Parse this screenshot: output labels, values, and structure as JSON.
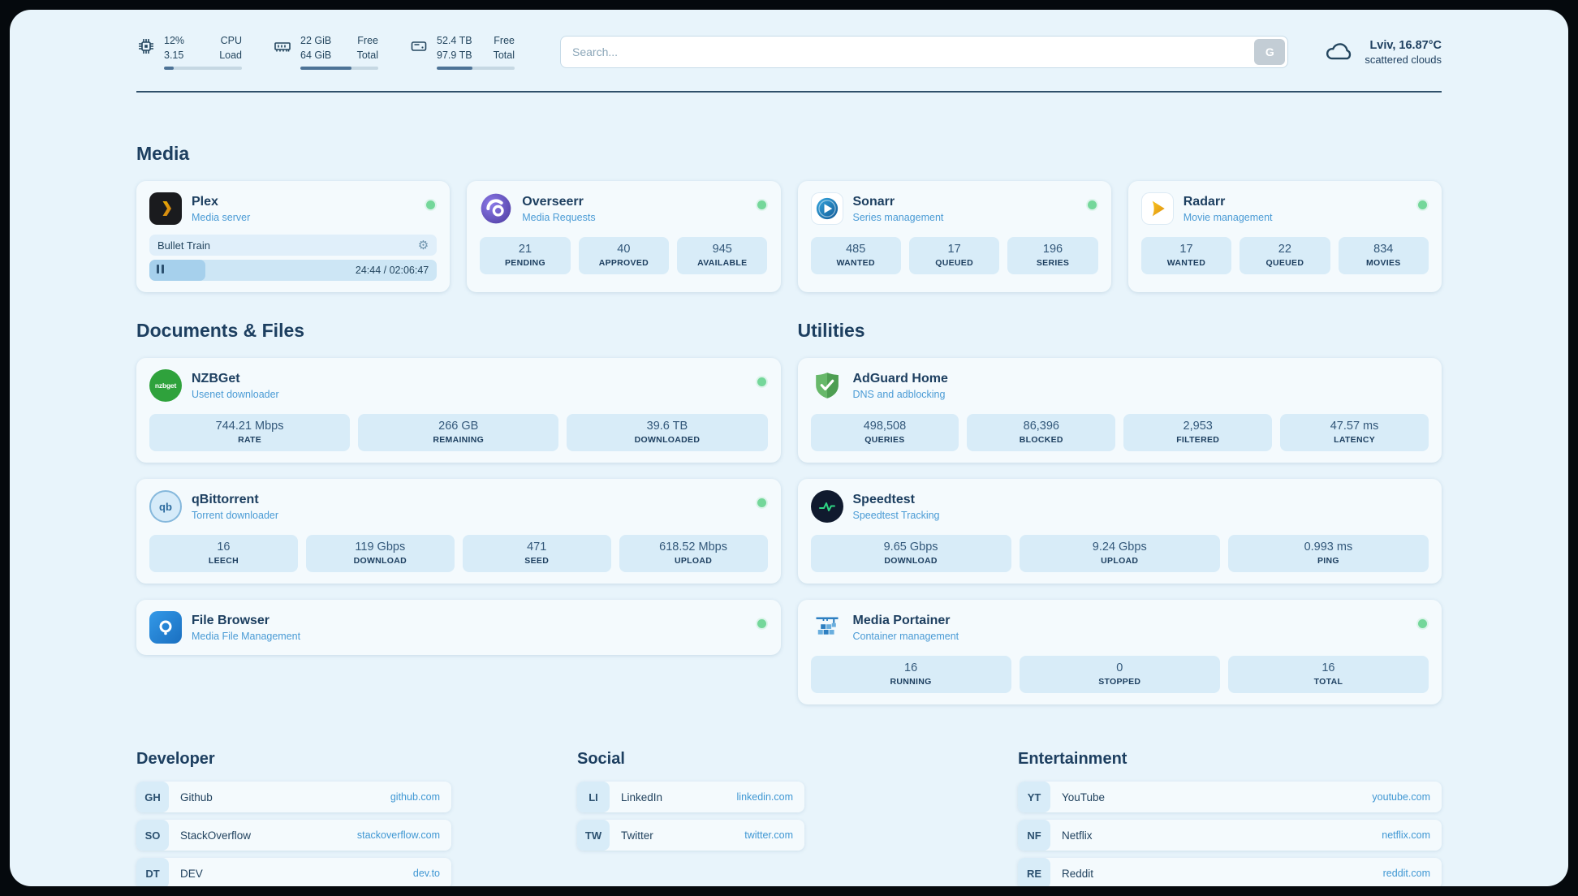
{
  "header": {
    "monitors": [
      {
        "icon": "cpu-icon",
        "value1": "12%",
        "label1": "CPU",
        "value2": "3.15",
        "label2": "Load",
        "bar_percent": 12
      },
      {
        "icon": "ram-icon",
        "value1": "22 GiB",
        "label1": "Free",
        "value2": "64 GiB",
        "label2": "Total",
        "bar_percent": 66
      },
      {
        "icon": "disk-icon",
        "value1": "52.4 TB",
        "label1": "Free",
        "value2": "97.9 TB",
        "label2": "Total",
        "bar_percent": 46
      }
    ],
    "search": {
      "placeholder": "Search...",
      "button_label": "G"
    },
    "weather": {
      "location": "Lviv, 16.87°C",
      "condition": "scattered clouds"
    }
  },
  "sections": {
    "media": {
      "title": "Media",
      "plex": {
        "name": "Plex",
        "subtitle": "Media server",
        "status": "online",
        "now_playing": {
          "title": "Bullet Train",
          "time_display": "24:44 / 02:06:47",
          "progress_percent": 19.5
        }
      },
      "overseerr": {
        "name": "Overseerr",
        "subtitle": "Media Requests",
        "status": "online",
        "stats": [
          {
            "value": "21",
            "label": "PENDING"
          },
          {
            "value": "40",
            "label": "APPROVED"
          },
          {
            "value": "945",
            "label": "AVAILABLE"
          }
        ]
      },
      "sonarr": {
        "name": "Sonarr",
        "subtitle": "Series management",
        "status": "online",
        "stats": [
          {
            "value": "485",
            "label": "WANTED"
          },
          {
            "value": "17",
            "label": "QUEUED"
          },
          {
            "value": "196",
            "label": "SERIES"
          }
        ]
      },
      "radarr": {
        "name": "Radarr",
        "subtitle": "Movie management",
        "status": "online",
        "stats": [
          {
            "value": "17",
            "label": "WANTED"
          },
          {
            "value": "22",
            "label": "QUEUED"
          },
          {
            "value": "834",
            "label": "MOVIES"
          }
        ]
      }
    },
    "documents": {
      "title": "Documents & Files",
      "nzbget": {
        "name": "NZBGet",
        "subtitle": "Usenet downloader",
        "status": "online",
        "logo_text": "nzbget",
        "stats": [
          {
            "value": "744.21 Mbps",
            "label": "RATE"
          },
          {
            "value": "266 GB",
            "label": "REMAINING"
          },
          {
            "value": "39.6 TB",
            "label": "DOWNLOADED"
          }
        ]
      },
      "qbittorrent": {
        "name": "qBittorrent",
        "subtitle": "Torrent downloader",
        "status": "online",
        "logo_text": "qb",
        "stats": [
          {
            "value": "16",
            "label": "LEECH"
          },
          {
            "value": "119 Gbps",
            "label": "DOWNLOAD"
          },
          {
            "value": "471",
            "label": "SEED"
          },
          {
            "value": "618.52 Mbps",
            "label": "UPLOAD"
          }
        ]
      },
      "filebrowser": {
        "name": "File Browser",
        "subtitle": "Media File Management",
        "status": "online"
      }
    },
    "utilities": {
      "title": "Utilities",
      "adguard": {
        "name": "AdGuard Home",
        "subtitle": "DNS and adblocking",
        "stats": [
          {
            "value": "498,508",
            "label": "QUERIES"
          },
          {
            "value": "86,396",
            "label": "BLOCKED"
          },
          {
            "value": "2,953",
            "label": "FILTERED"
          },
          {
            "value": "47.57 ms",
            "label": "LATENCY"
          }
        ]
      },
      "speedtest": {
        "name": "Speedtest",
        "subtitle": "Speedtest Tracking",
        "stats": [
          {
            "value": "9.65 Gbps",
            "label": "DOWNLOAD"
          },
          {
            "value": "9.24 Gbps",
            "label": "UPLOAD"
          },
          {
            "value": "0.993 ms",
            "label": "PING"
          }
        ]
      },
      "portainer": {
        "name": "Media Portainer",
        "subtitle": "Container management",
        "status": "online",
        "stats": [
          {
            "value": "16",
            "label": "RUNNING"
          },
          {
            "value": "0",
            "label": "STOPPED"
          },
          {
            "value": "16",
            "label": "TOTAL"
          }
        ]
      }
    }
  },
  "bookmarks": {
    "columns": [
      {
        "title": "Developer",
        "items": [
          {
            "abbr": "GH",
            "name": "Github",
            "url": "github.com"
          },
          {
            "abbr": "SO",
            "name": "StackOverflow",
            "url": "stackoverflow.com"
          },
          {
            "abbr": "DT",
            "name": "DEV",
            "url": "dev.to"
          }
        ]
      },
      {
        "title": "Social",
        "items": [
          {
            "abbr": "LI",
            "name": "LinkedIn",
            "url": "linkedin.com"
          },
          {
            "abbr": "TW",
            "name": "Twitter",
            "url": "twitter.com"
          }
        ]
      },
      {
        "title": "Entertainment",
        "items": [
          {
            "abbr": "YT",
            "name": "YouTube",
            "url": "youtube.com"
          },
          {
            "abbr": "NF",
            "name": "Netflix",
            "url": "netflix.com"
          },
          {
            "abbr": "RE",
            "name": "Reddit",
            "url": "reddit.com"
          }
        ]
      }
    ]
  },
  "colors": {
    "background": "#e8f4fb",
    "card": "#f4fafd",
    "stat_box": "#d8ecf8",
    "accent_blue": "#3f97d3",
    "text_navy": "#1d3f60",
    "status_green": "#74d79a"
  }
}
